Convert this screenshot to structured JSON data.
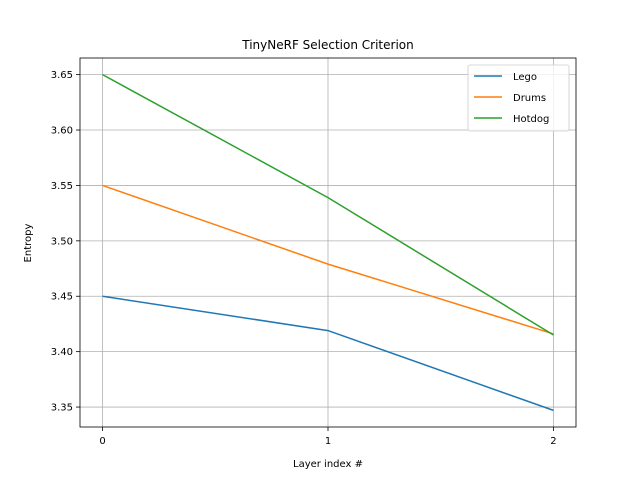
{
  "chart_data": {
    "type": "line",
    "title": "TinyNeRF Selection Criterion",
    "xlabel": "Layer index #",
    "ylabel": "Entropy",
    "x": [
      0,
      1,
      2
    ],
    "x_ticks": [
      "0",
      "1",
      "2"
    ],
    "xlim": [
      -0.1,
      2.1
    ],
    "ylim": [
      3.332,
      3.665
    ],
    "y_ticks": [
      "3.35",
      "3.40",
      "3.45",
      "3.50",
      "3.55",
      "3.60",
      "3.65"
    ],
    "y_tick_values": [
      3.35,
      3.4,
      3.45,
      3.5,
      3.55,
      3.6,
      3.65
    ],
    "grid": true,
    "legend_position": "top-right",
    "series": [
      {
        "name": "Lego",
        "color": "#1f77b4",
        "values": [
          3.45,
          3.419,
          3.347
        ]
      },
      {
        "name": "Drums",
        "color": "#ff7f0e",
        "values": [
          3.55,
          3.479,
          3.416
        ]
      },
      {
        "name": "Hotdog",
        "color": "#2ca02c",
        "values": [
          3.65,
          3.539,
          3.415
        ]
      }
    ]
  }
}
